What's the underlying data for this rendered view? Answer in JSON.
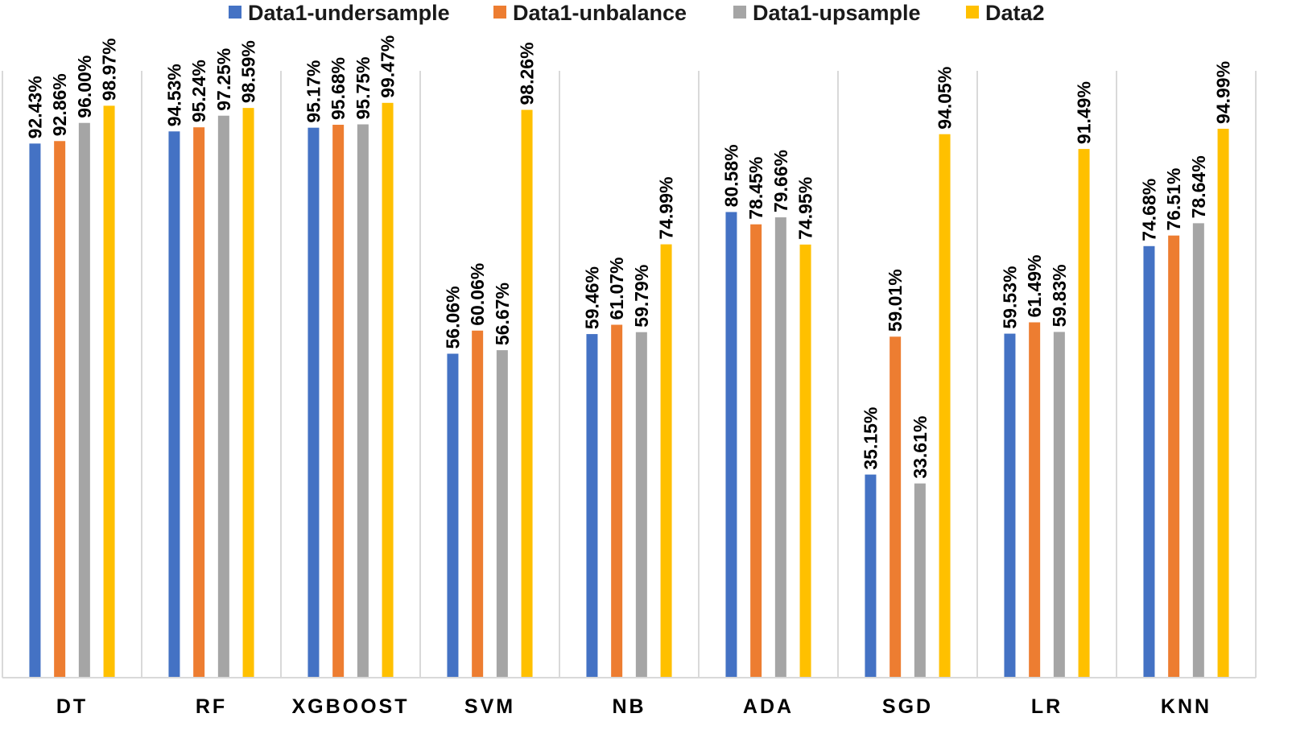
{
  "chart_data": {
    "type": "bar",
    "title": "",
    "xlabel": "",
    "ylabel": "",
    "ylim": [
      0,
      100
    ],
    "grid": false,
    "legend_position": "top",
    "value_format": "percent-2dp",
    "categories": [
      "DT",
      "RF",
      "XGBOOST",
      "SVM",
      "NB",
      "ADA",
      "SGD",
      "LR",
      "KNN"
    ],
    "series": [
      {
        "name": "Data1-undersample",
        "color": "#4472C4",
        "values": [
          92.43,
          94.53,
          95.17,
          56.06,
          59.46,
          80.58,
          35.15,
          59.53,
          74.68
        ]
      },
      {
        "name": "Data1-unbalance",
        "color": "#ED7D31",
        "values": [
          92.86,
          95.24,
          95.68,
          60.06,
          61.07,
          78.45,
          59.01,
          61.49,
          76.51
        ]
      },
      {
        "name": "Data1-upsample",
        "color": "#A5A5A5",
        "values": [
          96.0,
          97.25,
          95.75,
          56.67,
          59.79,
          79.66,
          33.61,
          59.83,
          78.64
        ]
      },
      {
        "name": "Data2",
        "color": "#FFC000",
        "values": [
          98.97,
          98.59,
          99.47,
          98.26,
          74.99,
          74.95,
          94.05,
          91.49,
          94.99
        ]
      }
    ]
  }
}
